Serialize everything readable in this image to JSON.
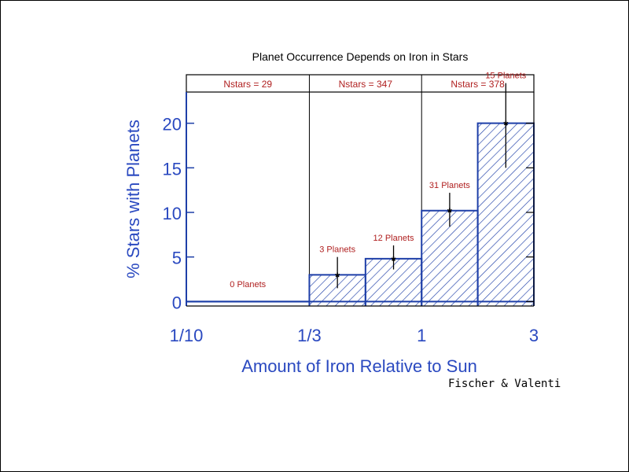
{
  "chart_data": {
    "type": "bar",
    "title": "Planet Occurrence Depends on Iron in Stars",
    "xlabel": "Amount of Iron Relative to Sun",
    "ylabel": "% Stars with Planets",
    "x_scale": "log",
    "xlim": [
      0.1,
      3
    ],
    "ylim": [
      -0.5,
      23.5
    ],
    "x_tick_labels": [
      {
        "value": 0.1,
        "label": "1/10"
      },
      {
        "value": 0.3333,
        "label": "1/3"
      },
      {
        "value": 1,
        "label": "1"
      },
      {
        "value": 3,
        "label": "3"
      }
    ],
    "y_ticks": [
      0,
      5,
      10,
      15,
      20
    ],
    "grid": false,
    "fill": "hatched",
    "colors": {
      "bars": "#1e3fa8",
      "annotations": "#b02020",
      "axis_labels": "#2a49c0",
      "axes": "#000000"
    },
    "bins": [
      {
        "x0": 0.1,
        "x1": 0.3333,
        "value": 0,
        "err_low": 0,
        "err_high": 0,
        "label": "0 Planets"
      },
      {
        "x0": 0.3333,
        "x1": 0.5773,
        "value": 3,
        "err_low": 1.5,
        "err_high": 2.0,
        "label": "3 Planets"
      },
      {
        "x0": 0.5773,
        "x1": 1,
        "value": 4.8,
        "err_low": 1.2,
        "err_high": 1.5,
        "label": "12 Planets"
      },
      {
        "x0": 1,
        "x1": 1.732,
        "value": 10.2,
        "err_low": 1.8,
        "err_high": 2.0,
        "label": "31 Planets"
      },
      {
        "x0": 1.732,
        "x1": 3,
        "value": 20,
        "err_low": 5.0,
        "err_high": 4.5,
        "label": "15 Planets"
      }
    ],
    "groups": [
      {
        "x0": 0.1,
        "x1": 0.3333,
        "label": "Nstars = 29"
      },
      {
        "x0": 0.3333,
        "x1": 1,
        "label": "Nstars = 347"
      },
      {
        "x0": 1,
        "x1": 3,
        "label": "Nstars = 378"
      }
    ]
  },
  "credit": "Fischer & Valenti"
}
